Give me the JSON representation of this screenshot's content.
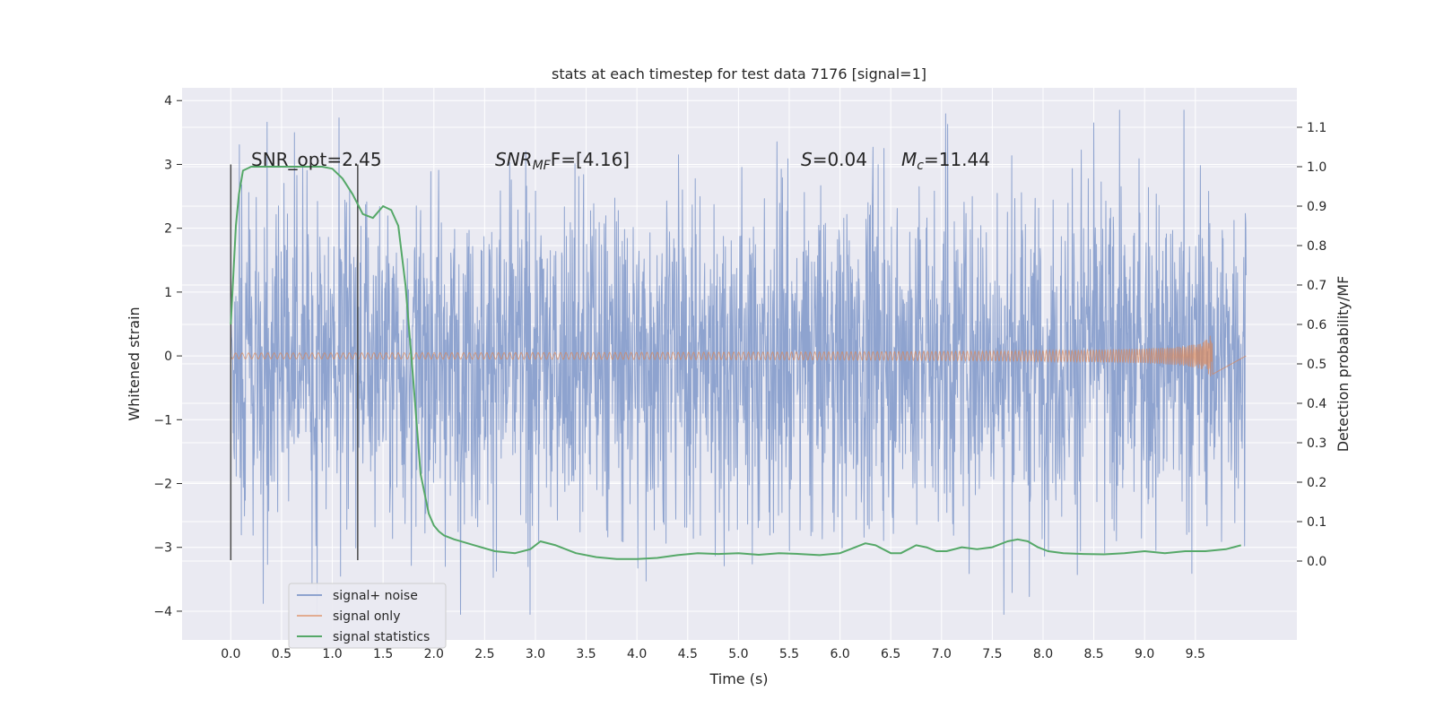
{
  "chart_data": {
    "type": "line",
    "title": "stats at each timestep for test data 7176 [signal=1]",
    "xlabel": "Time (s)",
    "ylabel_left": "Whitened strain",
    "ylabel_right": "Detection probability/MF",
    "xlim": [
      -0.48,
      10.5
    ],
    "ylim_left": [
      -4.45,
      4.2
    ],
    "ylim_right": [
      -0.2,
      1.2
    ],
    "x_ticks": [
      "0.0",
      "0.5",
      "1.0",
      "1.5",
      "2.0",
      "2.5",
      "3.0",
      "3.5",
      "4.0",
      "4.5",
      "5.0",
      "5.5",
      "6.0",
      "6.5",
      "7.0",
      "7.5",
      "8.0",
      "8.5",
      "9.0",
      "9.5"
    ],
    "y_left_ticks": [
      "4",
      "3",
      "2",
      "1",
      "0",
      "−1",
      "−2",
      "−3",
      "−4"
    ],
    "y_right_ticks": [
      "1.1",
      "1.0",
      "0.9",
      "0.8",
      "0.7",
      "0.6",
      "0.5",
      "0.4",
      "0.3",
      "0.2",
      "0.1",
      "0.0"
    ],
    "grid": true,
    "legend_position": "bottom-left",
    "annotations": {
      "snr_opt": "SNR_opt=2.45",
      "snr_mf_prefix": "SNR",
      "snr_mf_sub": "MF",
      "snr_mf_suffix": "F=[4.16]",
      "s_label": "S",
      "s_value": "=0.04",
      "mc_label": "M",
      "mc_sub": "c",
      "mc_value": "=11.44"
    },
    "vertical_markers": [
      0.0,
      1.25
    ],
    "colors": {
      "noise": "#8ea3cf",
      "signal": "#dd8452",
      "stats": "#55a868",
      "background": "#eaeaf2",
      "grid": "#ffffff",
      "marker": "#4a4a4a"
    },
    "series": [
      {
        "name": "signal+ noise",
        "axis": "left",
        "x_range": [
          0.0,
          10.0
        ],
        "noise_envelope": {
          "typical_amplitude": 1.9,
          "extreme_max": 3.85,
          "extreme_min": -4.05
        }
      },
      {
        "name": "signal only",
        "axis": "left",
        "chirp": {
          "start": 0.0,
          "end": 9.67,
          "max_amplitude": 0.48,
          "flat_after": 10.0
        }
      },
      {
        "name": "signal statistics",
        "axis": "right",
        "x": [
          0.0,
          0.05,
          0.08,
          0.12,
          0.2,
          0.3,
          0.5,
          0.7,
          0.9,
          1.0,
          1.1,
          1.2,
          1.3,
          1.4,
          1.5,
          1.58,
          1.65,
          1.72,
          1.8,
          1.87,
          1.95,
          2.0,
          2.05,
          2.1,
          2.2,
          2.4,
          2.6,
          2.8,
          2.95,
          3.05,
          3.2,
          3.4,
          3.6,
          3.8,
          4.0,
          4.2,
          4.4,
          4.6,
          4.8,
          5.0,
          5.2,
          5.4,
          5.6,
          5.8,
          6.0,
          6.1,
          6.25,
          6.35,
          6.5,
          6.6,
          6.75,
          6.85,
          6.95,
          7.05,
          7.2,
          7.35,
          7.5,
          7.65,
          7.75,
          7.85,
          7.95,
          8.05,
          8.2,
          8.4,
          8.6,
          8.8,
          9.0,
          9.2,
          9.4,
          9.6,
          9.8,
          9.95
        ],
        "y": [
          0.6,
          0.85,
          0.93,
          0.99,
          1.0,
          1.0,
          1.0,
          1.0,
          1.0,
          0.995,
          0.97,
          0.93,
          0.88,
          0.87,
          0.9,
          0.89,
          0.85,
          0.7,
          0.45,
          0.22,
          0.12,
          0.09,
          0.075,
          0.065,
          0.055,
          0.04,
          0.025,
          0.02,
          0.03,
          0.05,
          0.04,
          0.02,
          0.01,
          0.005,
          0.005,
          0.008,
          0.015,
          0.02,
          0.018,
          0.02,
          0.016,
          0.02,
          0.018,
          0.015,
          0.02,
          0.03,
          0.045,
          0.04,
          0.02,
          0.02,
          0.04,
          0.035,
          0.025,
          0.025,
          0.035,
          0.03,
          0.035,
          0.05,
          0.055,
          0.05,
          0.035,
          0.025,
          0.02,
          0.018,
          0.017,
          0.02,
          0.025,
          0.02,
          0.025,
          0.025,
          0.03,
          0.04
        ]
      }
    ]
  }
}
